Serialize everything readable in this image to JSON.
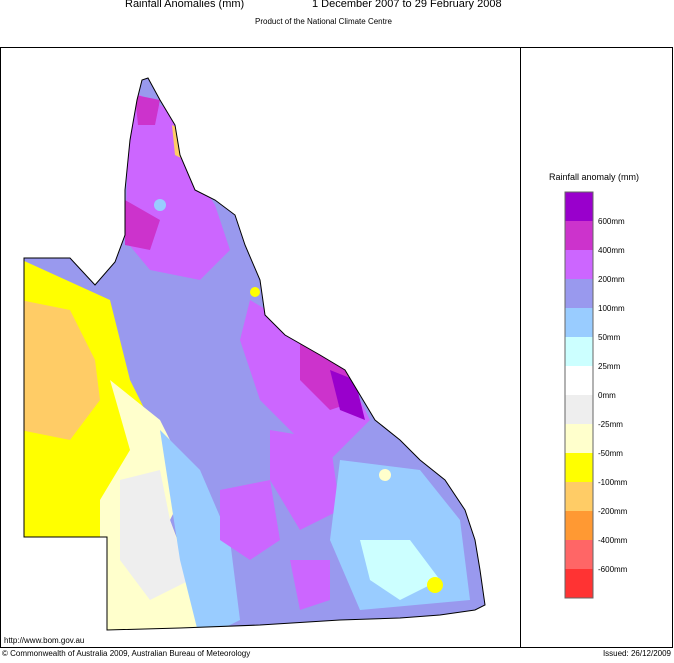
{
  "header": {
    "title": "Rainfall Anomalies (mm)",
    "period": "1 December 2007 to 29 February 2008",
    "subtitle": "Product of the National Climate Centre"
  },
  "legend": {
    "title": "Rainfall anomaly (mm)",
    "labels": [
      "600mm",
      "400mm",
      "200mm",
      "100mm",
      "50mm",
      "25mm",
      "0mm",
      "-25mm",
      "-50mm",
      "-100mm",
      "-200mm",
      "-400mm",
      "-600mm"
    ],
    "colors": [
      "#9900cc",
      "#cc33cc",
      "#cc66ff",
      "#9999ee",
      "#99ccff",
      "#ccffff",
      "#ffffff",
      "#eeeeee",
      "#ffffcc",
      "#ffff00",
      "#ffcc66",
      "#ff9933",
      "#ff6666",
      "#ff3333"
    ]
  },
  "footer": {
    "url": "http://www.bom.gov.au",
    "copyright": "© Commonwealth of Australia 2009, Australian Bureau of Meteorology",
    "issued": "Issued: 26/12/2009"
  }
}
